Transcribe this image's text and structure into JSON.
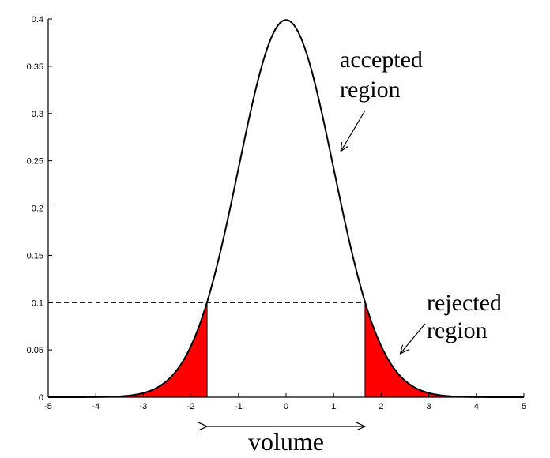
{
  "chart_data": {
    "type": "area",
    "title": "",
    "xlabel": "volume",
    "ylabel": "",
    "xlim": [
      -5,
      5
    ],
    "ylim": [
      0,
      0.4
    ],
    "grid": false,
    "x_ticks": [
      -5,
      -4,
      -3,
      -2,
      -1,
      0,
      1,
      2,
      3,
      4,
      5
    ],
    "x_tick_labels": [
      "-5",
      "-4",
      "-3",
      "-2",
      "-1",
      "0",
      "1",
      "2",
      "3",
      "4",
      "5"
    ],
    "y_ticks": [
      0,
      0.05,
      0.1,
      0.15,
      0.2,
      0.25,
      0.3,
      0.35,
      0.4
    ],
    "y_tick_labels": [
      "0",
      "0.05",
      "0.1",
      "0.15",
      "0.2",
      "0.25",
      "0.3",
      "0.35",
      "0.4"
    ],
    "series": [
      {
        "curve": "standard normal density",
        "mean": 0,
        "std": 1,
        "color": "#000000"
      }
    ],
    "threshold": {
      "y": 0.1,
      "x_left": -1.66,
      "x_right": 1.66,
      "style": "dashed"
    },
    "shaded_regions": [
      {
        "from": -5,
        "to": -1.66,
        "color": "#ff0000"
      },
      {
        "from": 1.66,
        "to": 5,
        "color": "#ff0000"
      }
    ],
    "annotations": {
      "accepted": {
        "lines": [
          "accepted",
          "region"
        ],
        "arrow_to": [
          1.15,
          0.26
        ]
      },
      "rejected": {
        "lines": [
          "rejected",
          "region"
        ],
        "arrow_to": [
          2.4,
          0.046
        ]
      }
    },
    "span_arrow": {
      "from": -1.66,
      "to": 1.66
    }
  }
}
